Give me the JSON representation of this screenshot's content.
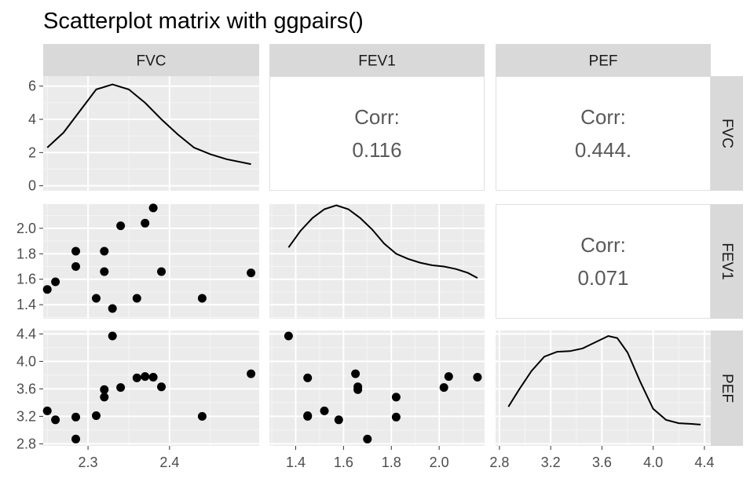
{
  "title": "Scatterplot matrix with ggpairs()",
  "variables": [
    "FVC",
    "FEV1",
    "PEF"
  ],
  "chart_data": {
    "type": "scatter",
    "title": "Scatterplot matrix with ggpairs()",
    "variables": [
      "FVC",
      "FEV1",
      "PEF"
    ],
    "axes": {
      "FVC": {
        "range": [
          2.245,
          2.51
        ],
        "ticks": [
          2.3,
          2.4
        ],
        "tick_labels": [
          "2.3",
          "2.4"
        ]
      },
      "FEV1": {
        "range": [
          1.29,
          2.19
        ],
        "ticks": [
          1.4,
          1.6,
          1.8,
          2.0
        ],
        "tick_labels": [
          "1.4",
          "1.6",
          "1.8",
          "2.0"
        ]
      },
      "PEF": {
        "range": [
          2.77,
          4.45
        ],
        "ticks": [
          2.8,
          3.2,
          3.6,
          4.0,
          4.4
        ],
        "tick_labels": [
          "2.8",
          "3.2",
          "3.6",
          "4.0",
          "4.4"
        ]
      }
    },
    "density_axis": {
      "range": [
        -0.3,
        6.6
      ],
      "ticks": [
        0,
        2,
        4,
        6
      ],
      "tick_labels": [
        "0",
        "2",
        "4",
        "6"
      ]
    },
    "observations": [
      {
        "FVC": 2.25,
        "FEV1": 1.52,
        "PEF": 3.28
      },
      {
        "FVC": 2.26,
        "FEV1": 1.58,
        "PEF": 3.15
      },
      {
        "FVC": 2.285,
        "FEV1": 1.82,
        "PEF": 3.19
      },
      {
        "FVC": 2.285,
        "FEV1": 1.7,
        "PEF": 2.87
      },
      {
        "FVC": 2.31,
        "FEV1": 1.45,
        "PEF": 3.21
      },
      {
        "FVC": 2.32,
        "FEV1": 1.82,
        "PEF": 3.48
      },
      {
        "FVC": 2.32,
        "FEV1": 1.66,
        "PEF": 3.59
      },
      {
        "FVC": 2.33,
        "FEV1": 1.37,
        "PEF": 4.37
      },
      {
        "FVC": 2.34,
        "FEV1": 2.02,
        "PEF": 3.62
      },
      {
        "FVC": 2.36,
        "FEV1": 1.45,
        "PEF": 3.76
      },
      {
        "FVC": 2.37,
        "FEV1": 2.04,
        "PEF": 3.78
      },
      {
        "FVC": 2.38,
        "FEV1": 2.16,
        "PEF": 3.77
      },
      {
        "FVC": 2.39,
        "FEV1": 1.66,
        "PEF": 3.63
      },
      {
        "FVC": 2.44,
        "FEV1": 1.45,
        "PEF": 3.2
      },
      {
        "FVC": 2.5,
        "FEV1": 1.65,
        "PEF": 3.82
      }
    ],
    "densities": {
      "FVC": {
        "x": [
          2.25,
          2.27,
          2.29,
          2.31,
          2.33,
          2.35,
          2.37,
          2.39,
          2.41,
          2.43,
          2.45,
          2.47,
          2.5
        ],
        "y": [
          2.3,
          3.2,
          4.5,
          5.8,
          6.1,
          5.8,
          5.0,
          4.0,
          3.1,
          2.3,
          1.9,
          1.6,
          1.3
        ]
      },
      "FEV1": {
        "x": [
          1.37,
          1.42,
          1.47,
          1.52,
          1.57,
          1.62,
          1.67,
          1.72,
          1.77,
          1.82,
          1.87,
          1.92,
          1.97,
          2.02,
          2.07,
          2.12,
          2.16
        ],
        "y": [
          1.85,
          1.98,
          2.08,
          2.15,
          2.18,
          2.15,
          2.08,
          1.99,
          1.88,
          1.8,
          1.76,
          1.73,
          1.71,
          1.7,
          1.68,
          1.65,
          1.61
        ]
      },
      "PEF": {
        "x": [
          2.87,
          2.95,
          3.05,
          3.15,
          3.25,
          3.35,
          3.45,
          3.55,
          3.65,
          3.72,
          3.8,
          3.9,
          4.0,
          4.1,
          4.2,
          4.3,
          4.37
        ],
        "y": [
          3.34,
          3.58,
          3.86,
          4.07,
          4.14,
          4.15,
          4.19,
          4.28,
          4.37,
          4.34,
          4.13,
          3.7,
          3.31,
          3.15,
          3.1,
          3.09,
          3.08
        ]
      }
    },
    "correlations": [
      {
        "row": "FVC",
        "col": "FEV1",
        "label": "Corr:",
        "value": "0.116"
      },
      {
        "row": "FVC",
        "col": "PEF",
        "label": "Corr:",
        "value": "0.444."
      },
      {
        "row": "FEV1",
        "col": "PEF",
        "label": "Corr:",
        "value": "0.071"
      }
    ]
  },
  "colors": {
    "panel_bg": "#ebebeb",
    "grid_major": "#ffffff",
    "grid_minor": "#f5f5f5",
    "strip_bg": "#d9d9d9",
    "point": "#000000",
    "line": "#000000",
    "corr_text": "#595959"
  }
}
